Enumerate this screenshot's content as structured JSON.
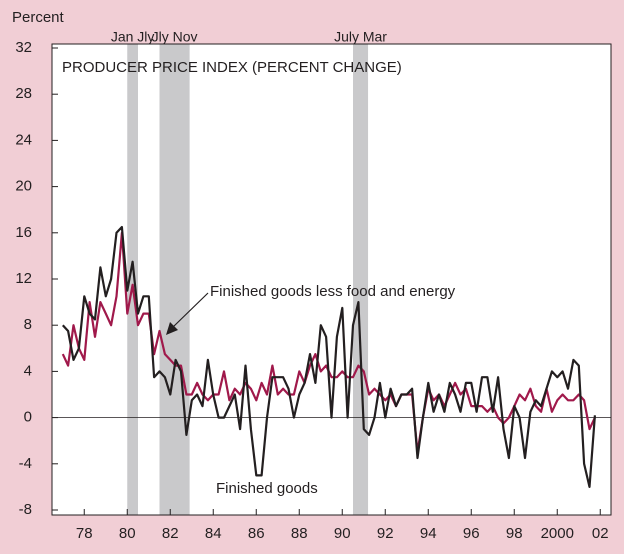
{
  "chart_data": {
    "type": "line",
    "title": "PRODUCER PRICE INDEX (PERCENT CHANGE)",
    "y_label": "Percent",
    "annotations": [
      "Finished goods less food and energy",
      "Finished goods"
    ],
    "recessions": [
      {
        "start": 1980.0,
        "end": 1980.5,
        "label": "Jan Jly"
      },
      {
        "start": 1981.5,
        "end": 1982.9,
        "label": "Jly Nov"
      },
      {
        "start": 1990.5,
        "end": 1991.2,
        "label": "July Mar"
      }
    ],
    "x": [
      1977,
      1977.25,
      1977.5,
      1977.75,
      1978,
      1978.25,
      1978.5,
      1978.75,
      1979,
      1979.25,
      1979.5,
      1979.75,
      1980,
      1980.25,
      1980.5,
      1980.75,
      1981,
      1981.25,
      1981.5,
      1981.75,
      1982,
      1982.25,
      1982.5,
      1982.75,
      1983,
      1983.25,
      1983.5,
      1983.75,
      1984,
      1984.25,
      1984.5,
      1984.75,
      1985,
      1985.25,
      1985.5,
      1985.75,
      1986,
      1986.25,
      1986.5,
      1986.75,
      1987,
      1987.25,
      1987.5,
      1987.75,
      1988,
      1988.25,
      1988.5,
      1988.75,
      1989,
      1989.25,
      1989.5,
      1989.75,
      1990,
      1990.25,
      1990.5,
      1990.75,
      1991,
      1991.25,
      1991.5,
      1991.75,
      1992,
      1992.25,
      1992.5,
      1992.75,
      1993,
      1993.25,
      1993.5,
      1993.75,
      1994,
      1994.25,
      1994.5,
      1994.75,
      1995,
      1995.25,
      1995.5,
      1995.75,
      1996,
      1996.25,
      1996.5,
      1996.75,
      1997,
      1997.25,
      1997.5,
      1997.75,
      1998,
      1998.25,
      1998.5,
      1998.75,
      1999,
      1999.25,
      1999.5,
      1999.75,
      2000,
      2000.25,
      2000.5,
      2000.75,
      2001,
      2001.25,
      2001.5,
      2001.75
    ],
    "series": [
      {
        "name": "Finished goods",
        "color": "#231f20",
        "values": [
          8,
          7.5,
          5,
          6,
          10.5,
          9,
          8.5,
          13,
          10.5,
          12,
          16,
          16.5,
          11,
          13.5,
          9,
          10.5,
          10.5,
          3.5,
          4,
          3.5,
          2,
          5,
          4,
          -1.5,
          1.5,
          2,
          1,
          5,
          2,
          0,
          0,
          1,
          2,
          -1,
          4.5,
          -1,
          -5,
          -5,
          0,
          3.5,
          3.5,
          3.5,
          2.5,
          0,
          2,
          3,
          5.5,
          3,
          8,
          7,
          0,
          7,
          9.5,
          0,
          8,
          10,
          -1,
          -1.5,
          0,
          3,
          0,
          2.5,
          1,
          2,
          2,
          2.5,
          -3.5,
          0,
          3,
          0.5,
          2,
          0.5,
          3,
          2,
          0.5,
          3,
          3,
          0.5,
          3.5,
          3.5,
          0.5,
          3.5,
          -1,
          -3.5,
          1,
          0,
          -3.5,
          0.5,
          1.5,
          1,
          2.5,
          4,
          3.5,
          4,
          2.5,
          5,
          4.5,
          -4,
          -6,
          0.2
        ]
      },
      {
        "name": "Finished goods less food and energy",
        "color": "#a0194b",
        "values": [
          5.5,
          4.5,
          8,
          6,
          5,
          10,
          7,
          10,
          9,
          8,
          10.5,
          16,
          9,
          11.5,
          8,
          9,
          9,
          5.5,
          7.5,
          5.5,
          5,
          4.5,
          4.5,
          2,
          2,
          3,
          2,
          1.5,
          2,
          2,
          4,
          1.5,
          2.5,
          2,
          3,
          2.5,
          1.5,
          3,
          2,
          4.5,
          2,
          2.5,
          2,
          2,
          4,
          3,
          4.5,
          5.5,
          4,
          4.5,
          3.5,
          3.5,
          4,
          3.5,
          3.5,
          4.5,
          4,
          2,
          2.5,
          2,
          1.5,
          2,
          1,
          2,
          2,
          2,
          -3,
          0,
          2.5,
          1.5,
          2,
          1,
          2,
          3,
          2,
          2.5,
          1,
          1,
          1,
          0.5,
          1,
          0,
          -0.5,
          0,
          1,
          2,
          1.5,
          2.5,
          1,
          0.5,
          2.5,
          0.5,
          1.5,
          2,
          1.5,
          1.5,
          2,
          1.5,
          -1,
          0
        ]
      }
    ],
    "xlim": [
      1976.5,
      2002.5
    ],
    "xticks": [
      {
        "value": 1978,
        "label": "78"
      },
      {
        "value": 1980,
        "label": "80"
      },
      {
        "value": 1982,
        "label": "82"
      },
      {
        "value": 1984,
        "label": "84"
      },
      {
        "value": 1986,
        "label": "86"
      },
      {
        "value": 1988,
        "label": "88"
      },
      {
        "value": 1990,
        "label": "90"
      },
      {
        "value": 1992,
        "label": "92"
      },
      {
        "value": 1994,
        "label": "94"
      },
      {
        "value": 1996,
        "label": "96"
      },
      {
        "value": 1998,
        "label": "98"
      },
      {
        "value": 2000,
        "label": "2000"
      },
      {
        "value": 2002,
        "label": "02"
      }
    ],
    "ylim": [
      -8,
      32
    ],
    "yticks": [
      -8,
      -4,
      0,
      4,
      8,
      12,
      16,
      20,
      24,
      28,
      32
    ],
    "zero_line": true
  }
}
